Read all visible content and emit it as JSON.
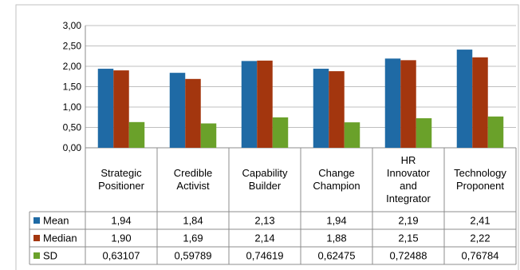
{
  "chart_data": {
    "type": "bar",
    "categories": [
      [
        "Strategic",
        "Positioner"
      ],
      [
        "Credible",
        "Activist"
      ],
      [
        "Capability",
        "Builder"
      ],
      [
        "Change",
        "Champion"
      ],
      [
        "HR",
        "Innovator",
        "and",
        "Integrator"
      ],
      [
        "Technology",
        "Proponent"
      ]
    ],
    "series": [
      {
        "name": "Mean",
        "color": "#1f6aa5",
        "values": [
          1.94,
          1.84,
          2.13,
          1.94,
          2.19,
          2.41
        ],
        "labels": [
          "1,94",
          "1,84",
          "2,13",
          "1,94",
          "2,19",
          "2,41"
        ]
      },
      {
        "name": "Median",
        "color": "#a3360e",
        "values": [
          1.9,
          1.69,
          2.14,
          1.88,
          2.15,
          2.22
        ],
        "labels": [
          "1,90",
          "1,69",
          "2,14",
          "1,88",
          "2,15",
          "2,22"
        ]
      },
      {
        "name": "SD",
        "color": "#6aa12a",
        "values": [
          0.63107,
          0.59789,
          0.74619,
          0.62475,
          0.72488,
          0.76784
        ],
        "labels": [
          "0,63107",
          "0,59789",
          "0,74619",
          "0,62475",
          "0,72488",
          "0,76784"
        ]
      }
    ],
    "ylim": [
      0,
      3
    ],
    "yticks": [
      0,
      0.5,
      1,
      1.5,
      2,
      2.5,
      3
    ],
    "ytick_labels": [
      "0,00",
      "0,50",
      "1,00",
      "1,50",
      "2,00",
      "2,50",
      "3,00"
    ],
    "gridlines": true,
    "legend": "data-table-rows",
    "title": "",
    "xlabel": "",
    "ylabel": ""
  }
}
